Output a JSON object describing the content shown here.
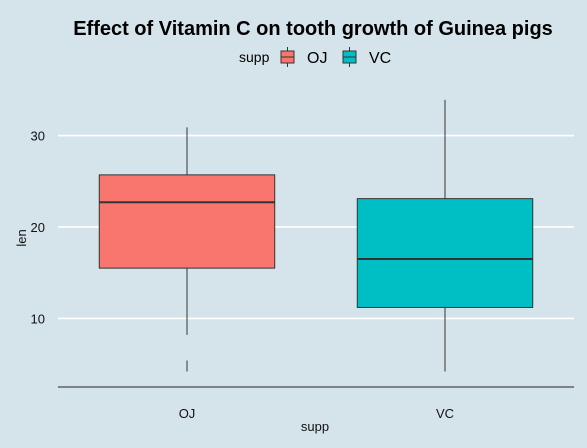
{
  "chart_data": {
    "type": "boxplot",
    "title": "Effect of Vitamin C on tooth growth of Guinea pigs",
    "xlabel": "supp",
    "ylabel": "len",
    "legend": {
      "title": "supp",
      "position": "top"
    },
    "ylim": [
      2.5,
      35.2
    ],
    "yticks": [
      10,
      20,
      30
    ],
    "grid": "horizontal",
    "categories": [
      "OJ",
      "VC"
    ],
    "series": [
      {
        "name": "OJ",
        "color": "#f8766d",
        "min": 8.2,
        "q1": 15.5,
        "median": 22.7,
        "q3": 25.7,
        "max": 30.9,
        "outlier_low": 4.2
      },
      {
        "name": "VC",
        "color": "#00bfc4",
        "min": 4.2,
        "q1": 11.2,
        "median": 16.5,
        "q3": 23.1,
        "max": 33.9
      }
    ]
  }
}
